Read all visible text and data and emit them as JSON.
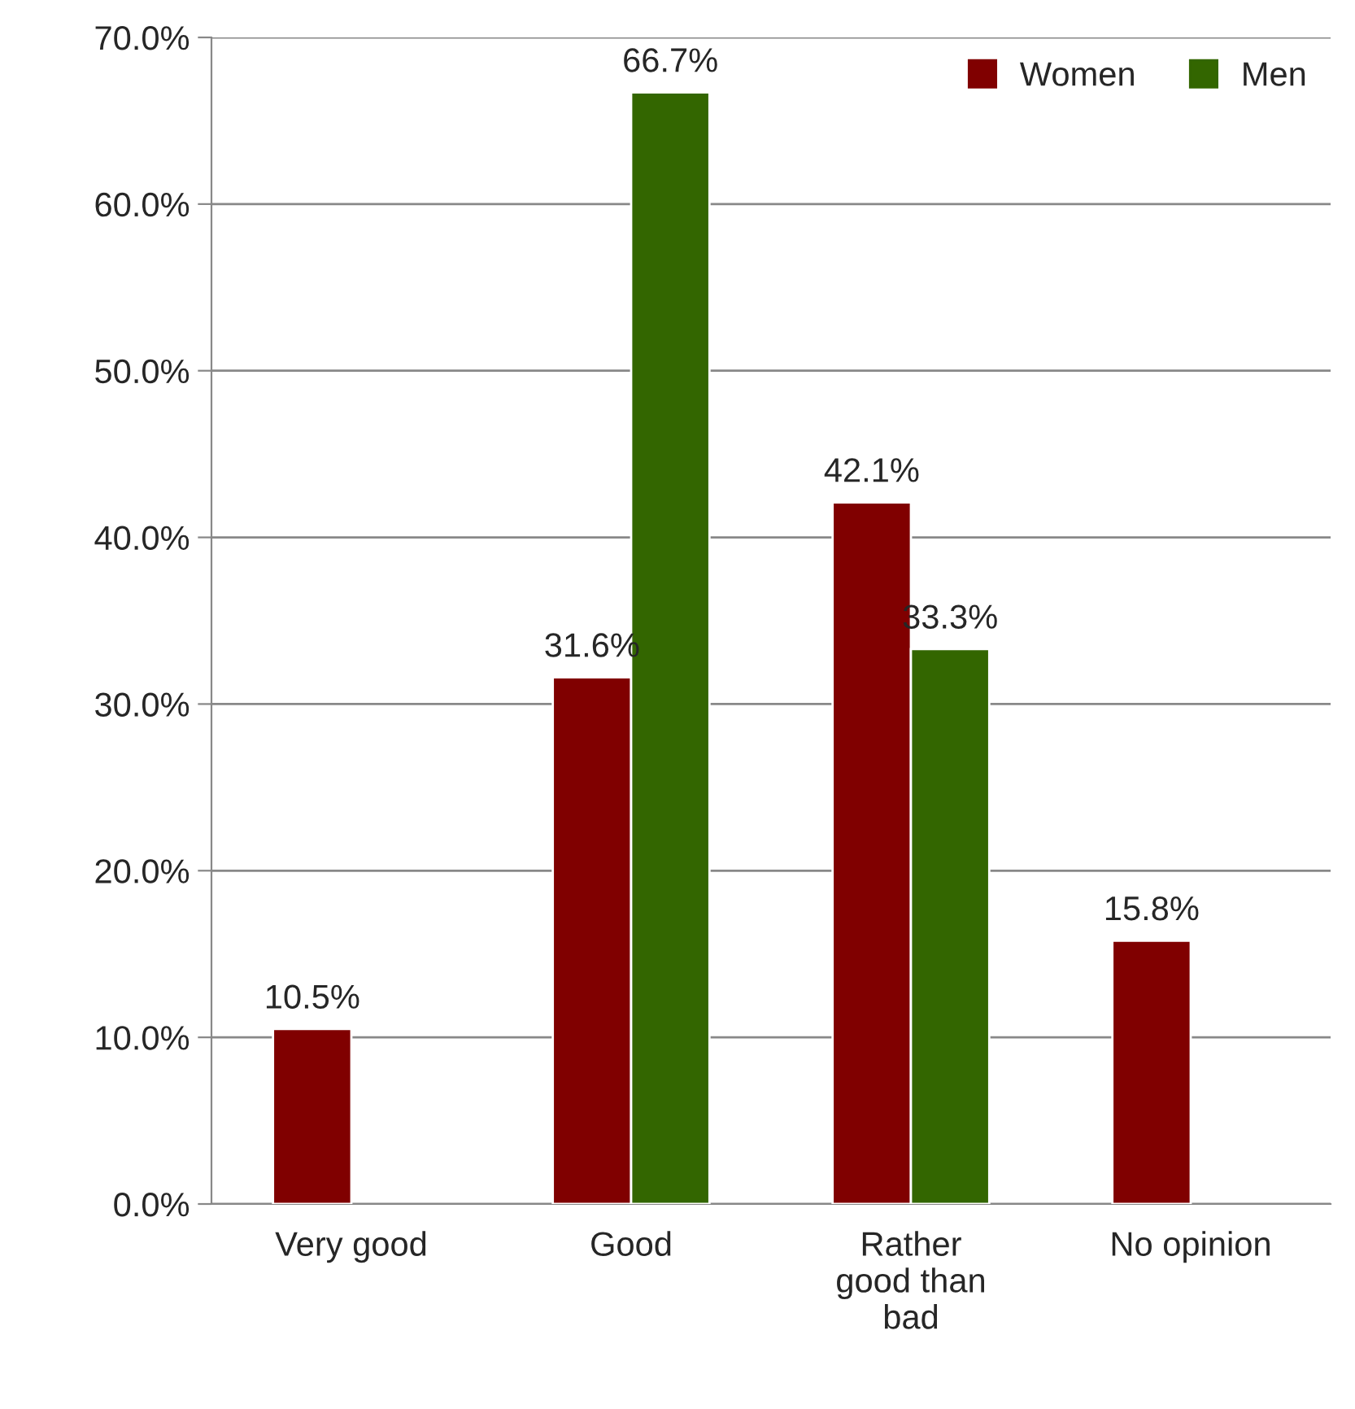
{
  "chart_data": {
    "type": "bar",
    "categories": [
      "Very good",
      "Good",
      "Rather\ngood than\nbad",
      "No opinion"
    ],
    "series": [
      {
        "name": "Women",
        "color": "#800000",
        "values": [
          10.5,
          31.6,
          42.1,
          15.8
        ]
      },
      {
        "name": "Men",
        "color": "#336600",
        "values": [
          null,
          66.7,
          33.3,
          null
        ]
      }
    ],
    "ylim": [
      0,
      70
    ],
    "yticks": [
      {
        "value": 0,
        "label": "0.0%"
      },
      {
        "value": 10,
        "label": "10.0%"
      },
      {
        "value": 20,
        "label": "20.0%"
      },
      {
        "value": 30,
        "label": "30.0%"
      },
      {
        "value": 40,
        "label": "40.0%"
      },
      {
        "value": 50,
        "label": "50.0%"
      },
      {
        "value": 60,
        "label": "60.0%"
      },
      {
        "value": 70,
        "label": "70.0%"
      }
    ],
    "grid": "y",
    "legend": "top right",
    "value_labels": [
      [
        "10.5%",
        "31.6%",
        "42.1%",
        "15.8%"
      ],
      [
        null,
        "66.7%",
        "33.3%",
        null
      ]
    ]
  }
}
